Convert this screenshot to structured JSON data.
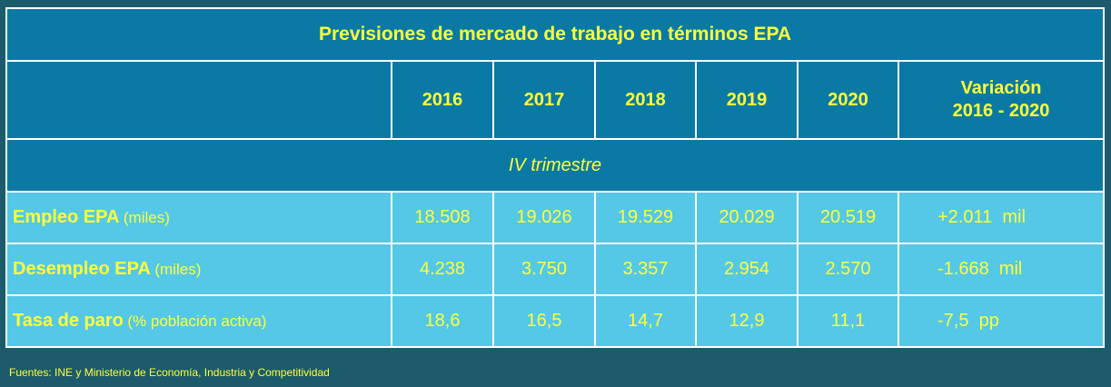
{
  "table": {
    "title": "Previsiones de mercado de trabajo en términos EPA",
    "years": [
      "2016",
      "2017",
      "2018",
      "2019",
      "2020"
    ],
    "variation_header": {
      "line1": "Variación",
      "line2": "2016 - 2020"
    },
    "subheader": "IV trimestre",
    "rows": [
      {
        "name": "Empleo EPA",
        "unit": "(miles)",
        "values": [
          "18.508",
          "19.026",
          "19.529",
          "20.029",
          "20.519"
        ],
        "variation": "+2.011  mil"
      },
      {
        "name": "Desempleo EPA",
        "unit": "(miles)",
        "values": [
          "4.238",
          "3.750",
          "3.357",
          "2.954",
          "2.570"
        ],
        "variation": "-1.668  mil"
      },
      {
        "name": "Tasa de paro",
        "unit": "(% población activa)",
        "values": [
          "18,6",
          "16,5",
          "14,7",
          "12,9",
          "11,1"
        ],
        "variation": "-7,5  pp"
      }
    ]
  },
  "footer": {
    "sources": "Fuentes: INE y Ministerio de Economía, Industria y Competitividad"
  },
  "colors": {
    "background": "#1c5b6b",
    "header_fill": "#0a7aa4",
    "row_fill": "#54c8e6",
    "text": "#ffff3a"
  }
}
